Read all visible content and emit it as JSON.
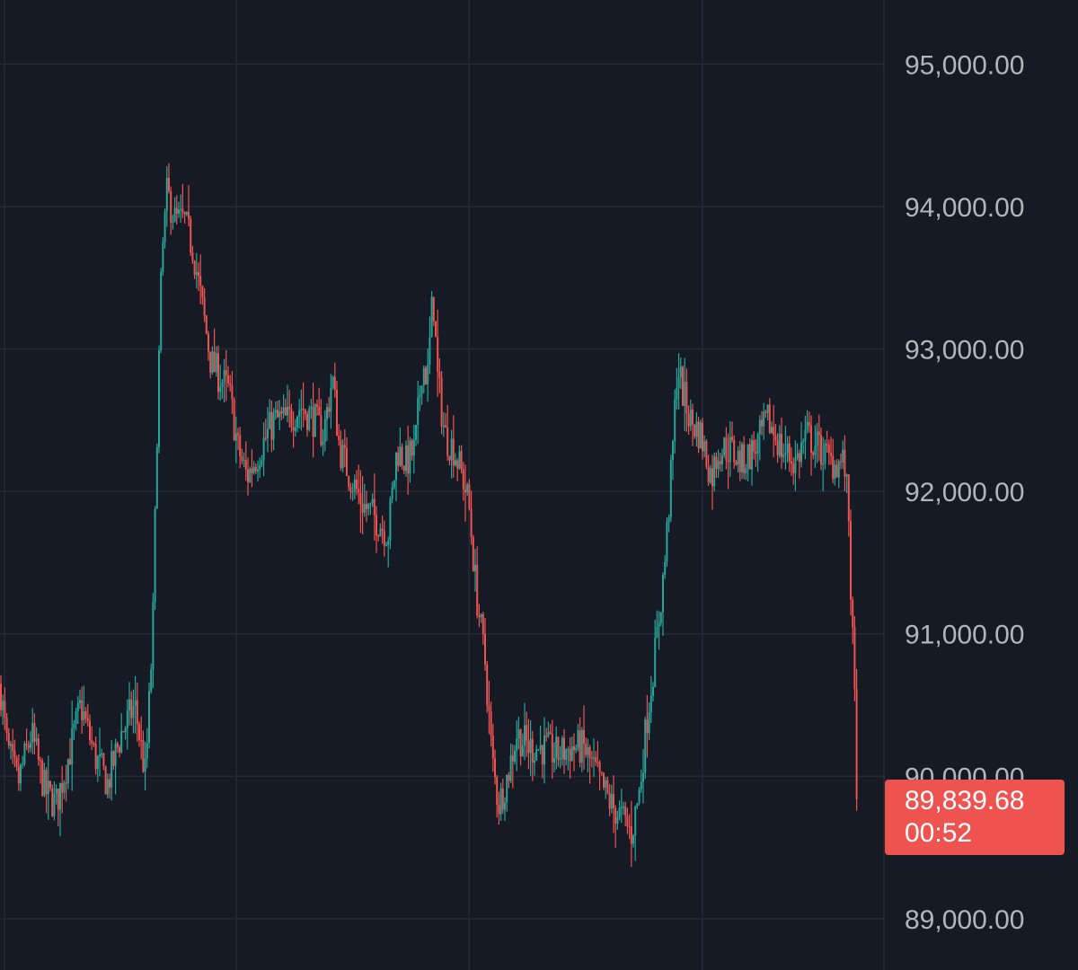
{
  "chart_data": {
    "type": "candlestick",
    "y_ticks": [
      "95,000.00",
      "94,000.00",
      "93,000.00",
      "92,000.00",
      "91,000.00",
      "90,000.00",
      "89,000.00"
    ],
    "y_tick_values": [
      95000,
      94000,
      93000,
      92000,
      91000,
      90000,
      89000
    ],
    "ylim": [
      88640,
      95450
    ],
    "grid": true,
    "colors": {
      "background": "#161a25",
      "grid": "#262a36",
      "up": "#26a69a",
      "down": "#ef5350",
      "axis_text": "#b2b5be"
    },
    "current_price": {
      "label": "89,839.68",
      "countdown": "00:52",
      "value": 89839.68
    },
    "path_points": [
      [
        0,
        90650
      ],
      [
        8,
        90200
      ],
      [
        20,
        89950
      ],
      [
        35,
        90300
      ],
      [
        50,
        89900
      ],
      [
        62,
        89800
      ],
      [
        75,
        90100
      ],
      [
        90,
        90500
      ],
      [
        105,
        90150
      ],
      [
        120,
        89950
      ],
      [
        135,
        90300
      ],
      [
        150,
        90500
      ],
      [
        162,
        90000
      ],
      [
        170,
        91000
      ],
      [
        175,
        92500
      ],
      [
        180,
        93600
      ],
      [
        186,
        94100
      ],
      [
        195,
        93900
      ],
      [
        205,
        93900
      ],
      [
        215,
        93700
      ],
      [
        225,
        93300
      ],
      [
        235,
        92900
      ],
      [
        245,
        92800
      ],
      [
        255,
        92700
      ],
      [
        265,
        92300
      ],
      [
        275,
        92100
      ],
      [
        290,
        92300
      ],
      [
        305,
        92500
      ],
      [
        320,
        92500
      ],
      [
        335,
        92600
      ],
      [
        350,
        92500
      ],
      [
        360,
        92400
      ],
      [
        370,
        92800
      ],
      [
        378,
        92300
      ],
      [
        390,
        92100
      ],
      [
        405,
        91900
      ],
      [
        420,
        91800
      ],
      [
        432,
        91700
      ],
      [
        442,
        92300
      ],
      [
        452,
        92200
      ],
      [
        462,
        92300
      ],
      [
        470,
        92900
      ],
      [
        476,
        92800
      ],
      [
        482,
        93400
      ],
      [
        487,
        92800
      ],
      [
        495,
        92400
      ],
      [
        505,
        92300
      ],
      [
        515,
        92100
      ],
      [
        522,
        91900
      ],
      [
        530,
        91300
      ],
      [
        540,
        90800
      ],
      [
        548,
        90100
      ],
      [
        555,
        89800
      ],
      [
        565,
        90000
      ],
      [
        575,
        90300
      ],
      [
        590,
        90200
      ],
      [
        605,
        90200
      ],
      [
        620,
        90150
      ],
      [
        635,
        90200
      ],
      [
        650,
        90200
      ],
      [
        665,
        90000
      ],
      [
        680,
        89800
      ],
      [
        693,
        89700
      ],
      [
        703,
        89600
      ],
      [
        712,
        89900
      ],
      [
        720,
        90400
      ],
      [
        730,
        90900
      ],
      [
        740,
        91500
      ],
      [
        748,
        92200
      ],
      [
        754,
        92900
      ],
      [
        760,
        92700
      ],
      [
        768,
        92500
      ],
      [
        780,
        92400
      ],
      [
        792,
        92100
      ],
      [
        800,
        92300
      ],
      [
        812,
        92300
      ],
      [
        825,
        92200
      ],
      [
        840,
        92300
      ],
      [
        855,
        92500
      ],
      [
        870,
        92300
      ],
      [
        885,
        92200
      ],
      [
        898,
        92400
      ],
      [
        912,
        92300
      ],
      [
        925,
        92200
      ],
      [
        940,
        92200
      ],
      [
        945,
        91800
      ],
      [
        948,
        91100
      ],
      [
        950,
        90800
      ],
      [
        953,
        90200
      ],
      [
        955,
        89839.68
      ]
    ]
  }
}
